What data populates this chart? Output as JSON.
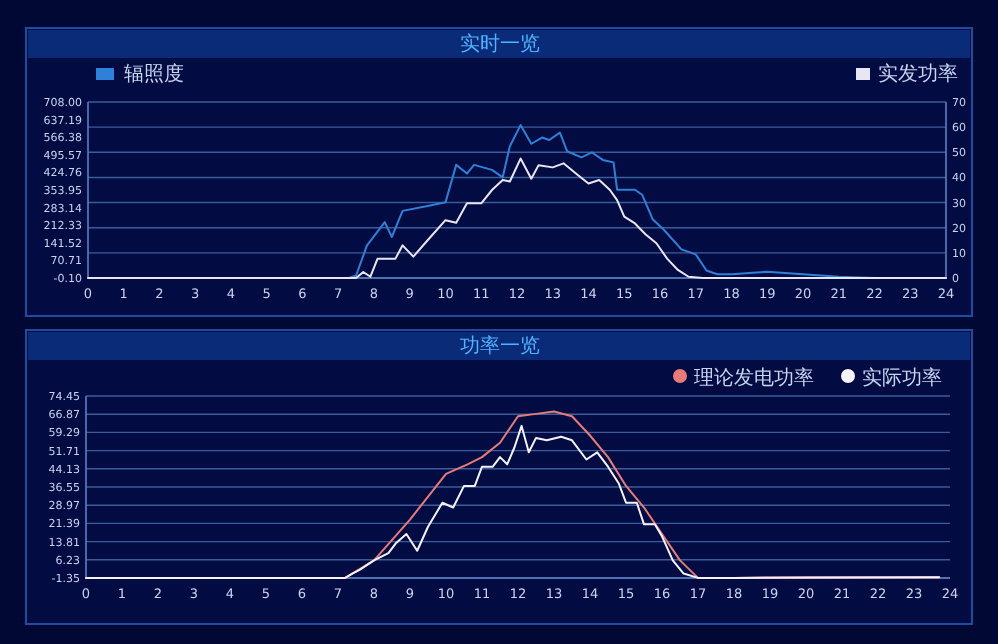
{
  "chart_data": [
    {
      "type": "line",
      "title": "实时一览",
      "x": [
        0,
        7.3,
        7.5,
        7.8,
        8.3,
        8.5,
        8.8,
        9.5,
        10.0,
        10.3,
        10.6,
        10.8,
        11.3,
        11.6,
        11.8,
        12.1,
        12.4,
        12.7,
        12.9,
        13.2,
        13.4,
        13.8,
        14.1,
        14.4,
        14.7,
        14.8,
        15.3,
        15.5,
        15.8,
        16.1,
        16.6,
        17.0,
        17.3,
        17.6,
        18.0,
        19.0,
        20.0,
        21.0,
        22.0,
        24.0
      ],
      "series": [
        {
          "name": "辐照度",
          "color": "#2f80d8",
          "values": [
            0,
            0,
            10,
            130,
            225,
            165,
            270,
            290,
            305,
            455,
            420,
            455,
            435,
            405,
            530,
            615,
            540,
            565,
            555,
            585,
            510,
            485,
            505,
            475,
            465,
            355,
            355,
            335,
            235,
            195,
            115,
            95,
            30,
            15,
            15,
            25,
            15,
            5,
            0,
            0
          ]
        },
        {
          "name": "实发功率",
          "color": "#e8e6f2",
          "axis": "y2",
          "x": [
            0,
            7.3,
            7.5,
            7.7,
            7.9,
            8.1,
            8.6,
            8.8,
            9.1,
            9.5,
            10.0,
            10.3,
            10.6,
            11.0,
            11.3,
            11.6,
            11.8,
            12.1,
            12.4,
            12.6,
            13.0,
            13.3,
            13.7,
            14.0,
            14.3,
            14.6,
            14.8,
            15.0,
            15.3,
            15.6,
            15.9,
            16.2,
            16.5,
            16.8,
            17.2,
            24.0
          ],
          "values": [
            0,
            0,
            0,
            2.4,
            0.5,
            7.7,
            7.7,
            13,
            8.5,
            15,
            23,
            22,
            29.7,
            29.7,
            35,
            39,
            38.4,
            47.5,
            39.5,
            44.8,
            44,
            45.6,
            41,
            37.6,
            39,
            35,
            31,
            24.4,
            21.7,
            17.3,
            13.8,
            7.7,
            3.2,
            0.5,
            0,
            0
          ]
        }
      ],
      "xlim": [
        0,
        24
      ],
      "xticks": [
        0,
        1,
        2,
        3,
        4,
        5,
        6,
        7,
        8,
        9,
        10,
        11,
        12,
        13,
        14,
        15,
        16,
        17,
        18,
        19,
        20,
        21,
        22,
        23,
        24
      ],
      "ylim": [
        -0.1,
        708.0
      ],
      "yticks": [
        {
          "value": -0.1,
          "label": "-0.10"
        },
        {
          "value": 70.71,
          "label": "70.71"
        },
        {
          "value": 141.52,
          "label": "141.52"
        },
        {
          "value": 212.33,
          "label": "212.33"
        },
        {
          "value": 283.14,
          "label": "283.14"
        },
        {
          "value": 353.95,
          "label": "353.95"
        },
        {
          "value": 424.76,
          "label": "424.76"
        },
        {
          "value": 495.57,
          "label": "495.57"
        },
        {
          "value": 566.38,
          "label": "566.38"
        },
        {
          "value": 637.19,
          "label": "637.19"
        },
        {
          "value": 708.0,
          "label": "708.00"
        }
      ],
      "y2lim": [
        0,
        70
      ],
      "y2ticks": [
        0,
        10,
        20,
        30,
        40,
        50,
        60,
        70
      ],
      "grid": "y2",
      "legend": "top",
      "marker": "none",
      "line_style": "solid"
    },
    {
      "type": "line",
      "title": "功率一览",
      "x": [
        0,
        7.2,
        8.0,
        9.0,
        10.0,
        10.6,
        11.0,
        11.5,
        12.0,
        12.5,
        13.0,
        13.5,
        14.0,
        14.5,
        15.0,
        15.5,
        16.0,
        16.5,
        17.0,
        18.0,
        20.0,
        23.7
      ],
      "series": [
        {
          "name": "理论发电功率",
          "color": "#e87a7a",
          "values": [
            -1.3,
            -1.3,
            6,
            23,
            42,
            46,
            49,
            55,
            66,
            67,
            68,
            66,
            58,
            49,
            37,
            28,
            17,
            6,
            -1.3,
            -1.3,
            -1,
            -1
          ]
        },
        {
          "name": "实际功率",
          "color": "#f4f2fa",
          "x": [
            0,
            7.2,
            7.4,
            7.6,
            7.8,
            8.0,
            8.4,
            8.6,
            8.9,
            9.2,
            9.5,
            9.9,
            10.2,
            10.5,
            10.8,
            11.0,
            11.3,
            11.5,
            11.7,
            11.9,
            12.1,
            12.3,
            12.5,
            12.8,
            13.2,
            13.5,
            13.9,
            14.2,
            14.5,
            14.8,
            15.0,
            15.3,
            15.5,
            15.8,
            16.0,
            16.3,
            16.6,
            17.0,
            17.5,
            18.0,
            23.7
          ],
          "values": [
            -1.3,
            -1.3,
            0.5,
            2,
            4,
            6,
            9,
            13,
            17,
            10,
            20,
            30,
            28,
            37,
            37,
            45,
            45,
            49,
            46,
            53,
            62,
            51,
            57,
            56,
            57.5,
            56,
            48,
            51,
            45,
            38,
            30,
            30,
            21,
            21,
            16,
            6,
            0.5,
            -1.3,
            -1.3,
            -1.3,
            -1
          ]
        }
      ],
      "xlim": [
        0,
        24
      ],
      "xticks": [
        0,
        1,
        2,
        3,
        4,
        5,
        6,
        7,
        8,
        9,
        10,
        11,
        12,
        13,
        14,
        15,
        16,
        17,
        18,
        19,
        20,
        21,
        22,
        23,
        24
      ],
      "ylim": [
        -1.35,
        74.45
      ],
      "yticks": [
        {
          "value": -1.35,
          "label": "-1.35"
        },
        {
          "value": 6.23,
          "label": "6.23"
        },
        {
          "value": 13.81,
          "label": "13.81"
        },
        {
          "value": 21.39,
          "label": "21.39"
        },
        {
          "value": 28.97,
          "label": "28.97"
        },
        {
          "value": 36.55,
          "label": "36.55"
        },
        {
          "value": 44.13,
          "label": "44.13"
        },
        {
          "value": 51.71,
          "label": "51.71"
        },
        {
          "value": 59.29,
          "label": "59.29"
        },
        {
          "value": 66.87,
          "label": "66.87"
        },
        {
          "value": 74.45,
          "label": "74.45"
        }
      ],
      "grid": "y",
      "legend": "top right",
      "marker": "none",
      "line_style": "solid"
    }
  ]
}
